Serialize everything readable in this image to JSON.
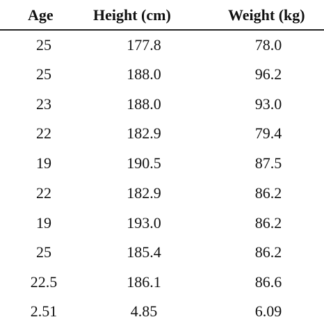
{
  "table": {
    "headers": [
      "Age",
      "Height (cm)",
      "Weight (kg)"
    ],
    "rows": [
      [
        "25",
        "177.8",
        "78.0"
      ],
      [
        "25",
        "188.0",
        "96.2"
      ],
      [
        "23",
        "188.0",
        "93.0"
      ],
      [
        "22",
        "182.9",
        "79.4"
      ],
      [
        "19",
        "190.5",
        "87.5"
      ],
      [
        "22",
        "182.9",
        "86.2"
      ],
      [
        "19",
        "193.0",
        "86.2"
      ],
      [
        "25",
        "185.4",
        "86.2"
      ],
      [
        "22.5",
        "186.1",
        "86.6"
      ],
      [
        "2.51",
        "4.85",
        "6.09"
      ]
    ]
  }
}
